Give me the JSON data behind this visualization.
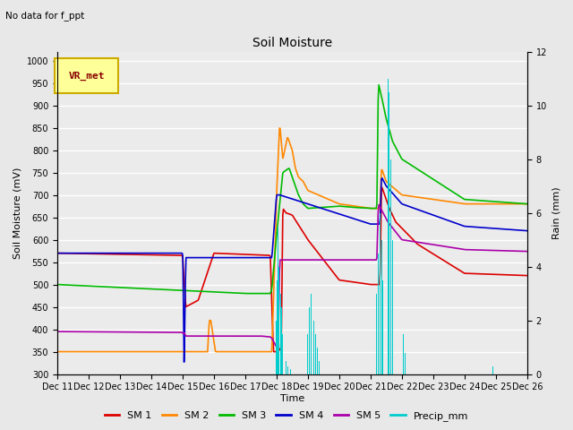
{
  "title": "Soil Moisture",
  "subtitle": "No data for f_ppt",
  "xlabel": "Time",
  "ylabel_left": "Soil Moisture (mV)",
  "ylabel_right": "Rain (mm)",
  "ylim_left": [
    300,
    1020
  ],
  "ylim_right": [
    0,
    12
  ],
  "yticks_left": [
    300,
    350,
    400,
    450,
    500,
    550,
    600,
    650,
    700,
    750,
    800,
    850,
    900,
    950,
    1000
  ],
  "yticks_right": [
    0,
    2,
    4,
    6,
    8,
    10,
    12
  ],
  "legend_label": "VR_met",
  "background_color": "#e8e8e8",
  "axes_bg": "#ebebeb",
  "grid_color": "white",
  "colors": {
    "SM1": "#dd0000",
    "SM2": "#ff8800",
    "SM3": "#00bb00",
    "SM4": "#0000cc",
    "SM5": "#aa00aa",
    "Precip": "#00cccc"
  },
  "fig_width": 6.4,
  "fig_height": 4.8,
  "dpi": 100
}
